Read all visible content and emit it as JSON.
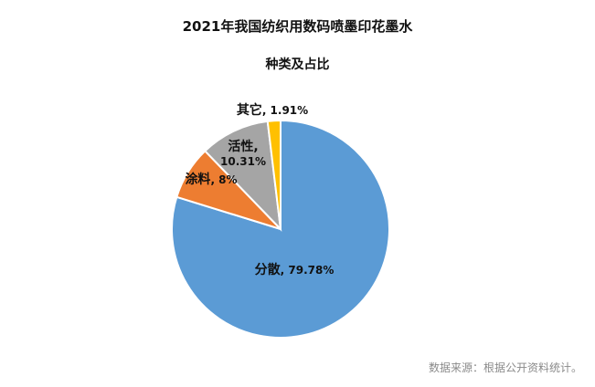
{
  "chart_data": {
    "type": "pie",
    "title": "2021年我国纺织用数码喷墨印花墨水",
    "subtitle": "种类及占比",
    "slices": [
      {
        "label": "分散",
        "value": 79.78,
        "value_text": "79.78%",
        "color": "#5B9BD5"
      },
      {
        "label": "涂料",
        "value": 8,
        "value_text": "8%",
        "color": "#ED7D31"
      },
      {
        "label": "活性",
        "value": 10.31,
        "value_text": "10.31%",
        "color": "#A5A5A5"
      },
      {
        "label": "其它",
        "value": 1.91,
        "value_text": "1.91%",
        "color": "#FFC000"
      }
    ],
    "start_angle_deg": 0,
    "direction": "clockwise",
    "legend": "none"
  },
  "footer": {
    "source_note": "数据来源：根据公开资料统计。"
  }
}
